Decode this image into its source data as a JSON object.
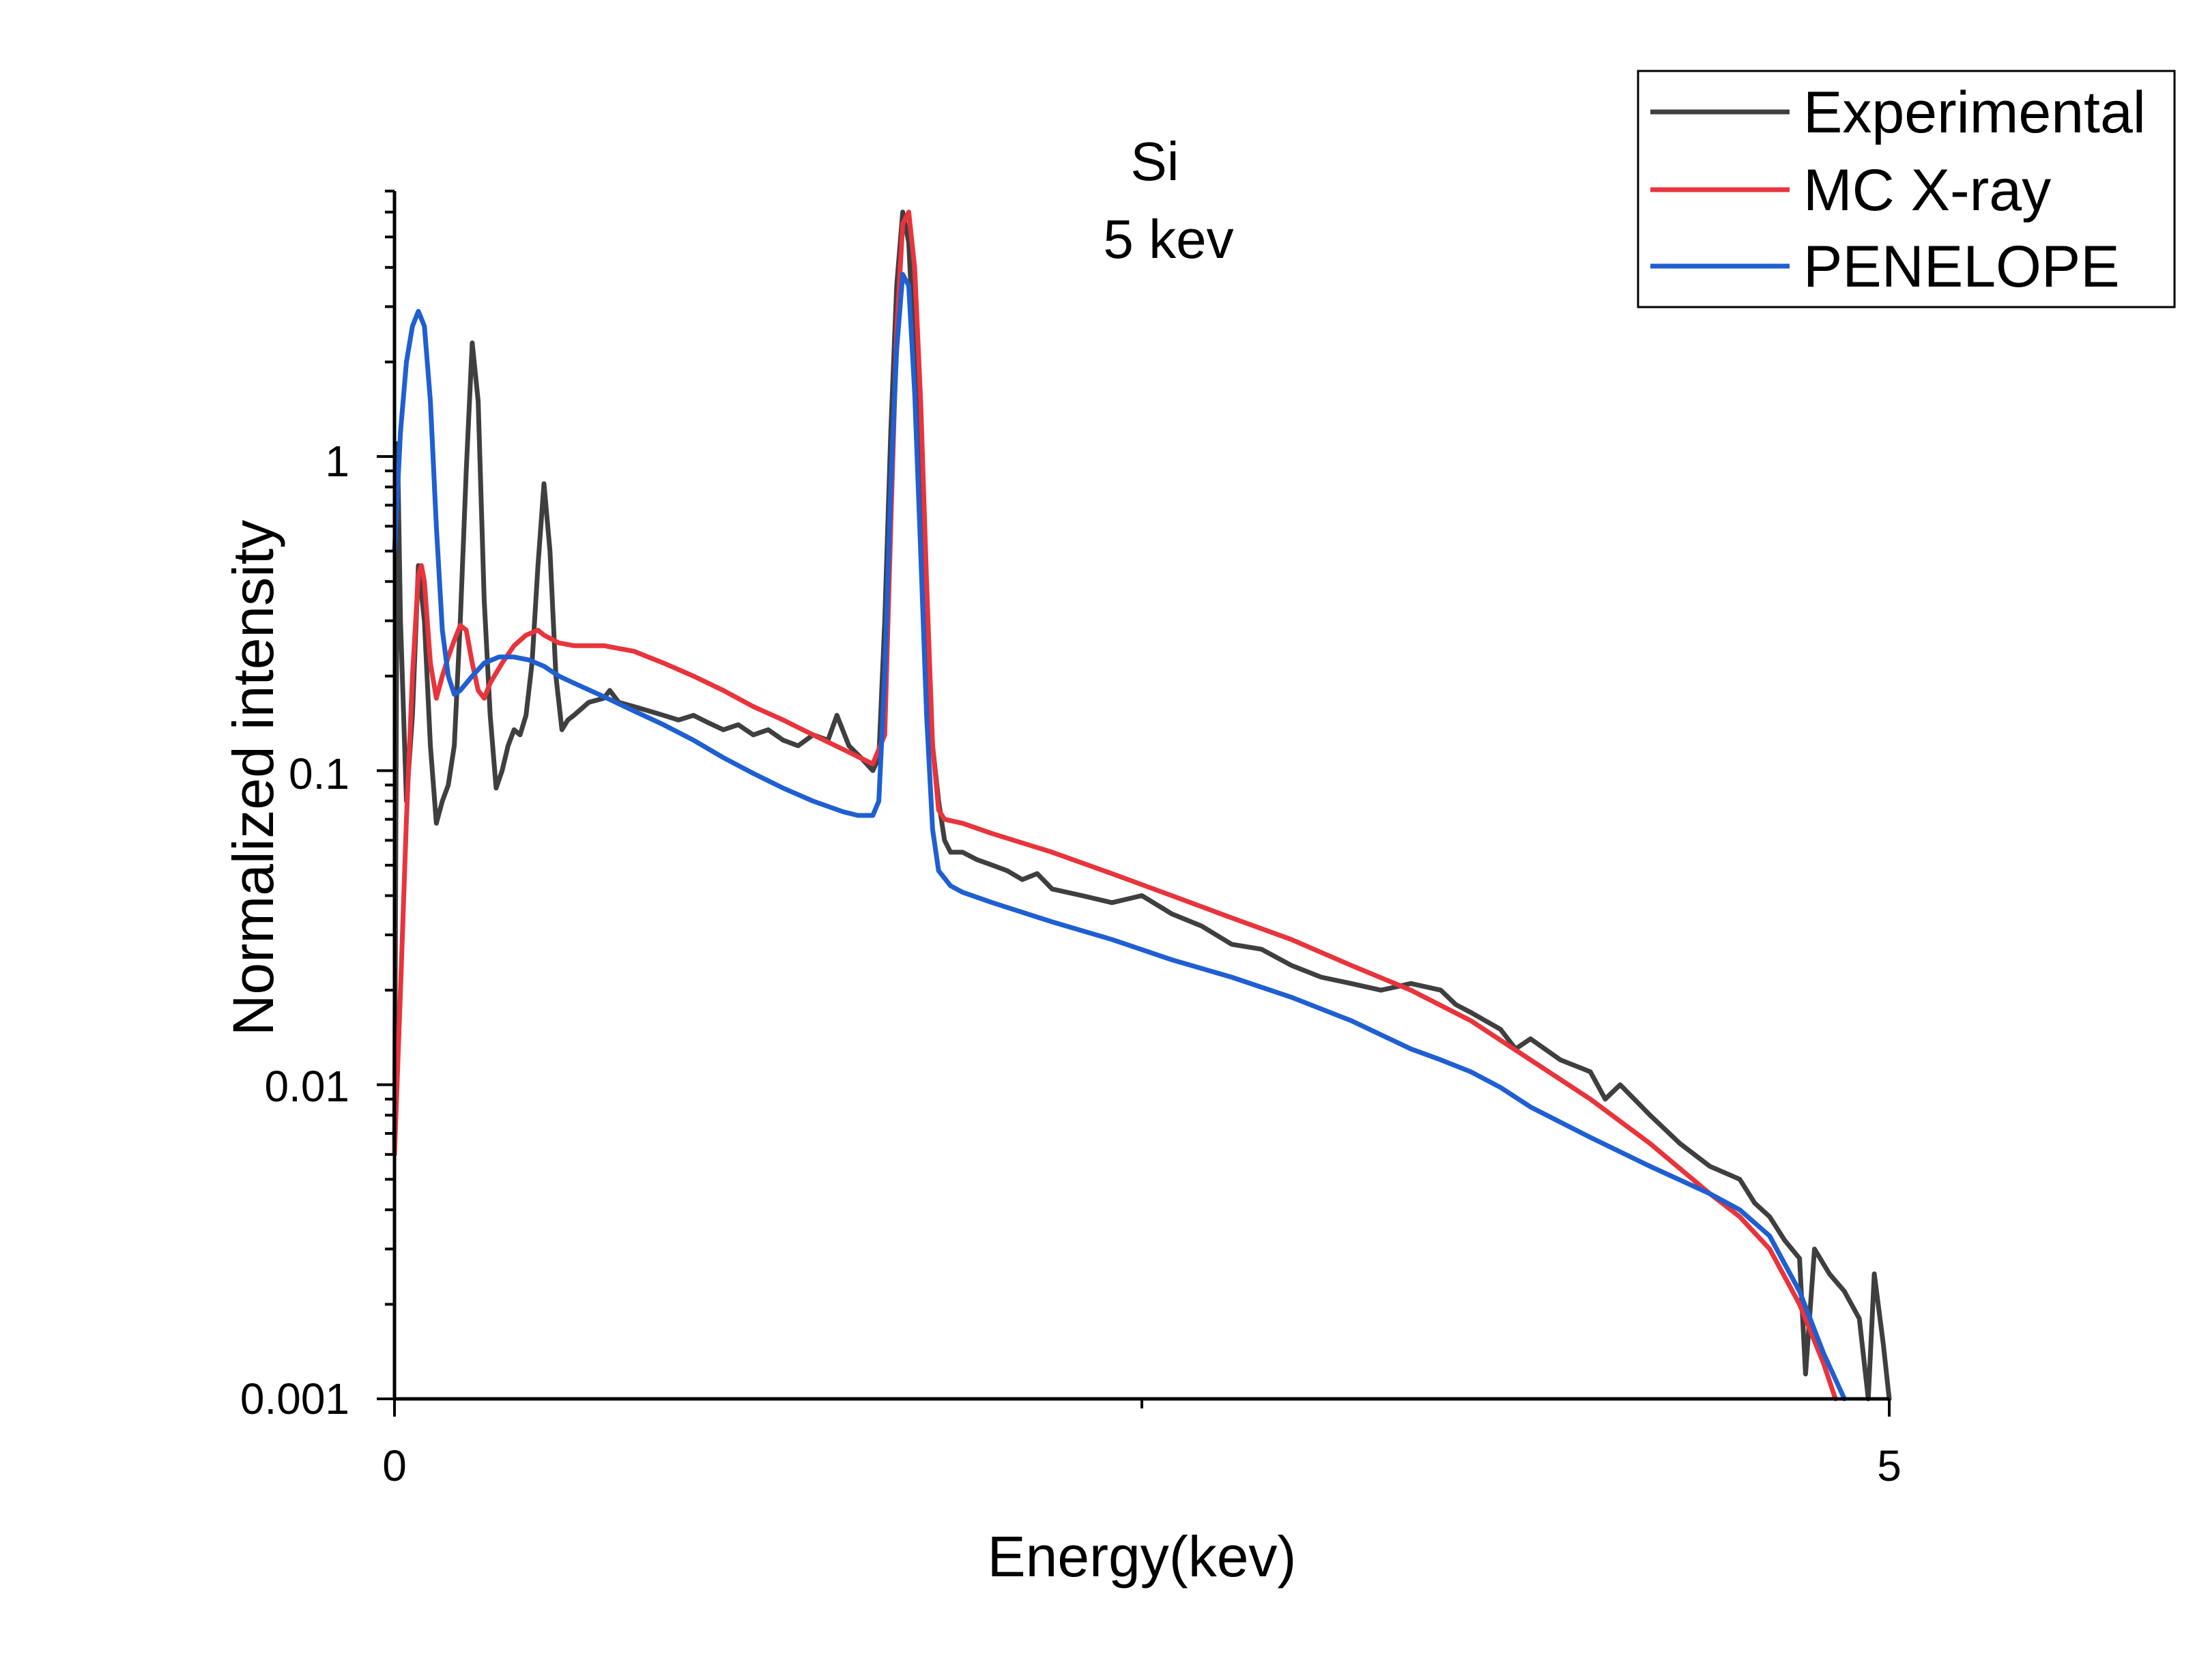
{
  "chart_data": {
    "type": "line",
    "title": "",
    "annotations": [
      "Si",
      "5 kev"
    ],
    "xlabel": "Energy(kev)",
    "ylabel": "Normalized intensity",
    "xscale": "linear",
    "yscale": "log",
    "xlim": [
      0,
      5
    ],
    "ylim": [
      0.001,
      7
    ],
    "x_ticks": [
      {
        "value": 0,
        "label": "0"
      },
      {
        "value": 5,
        "label": "5"
      }
    ],
    "x_minor_ticks": [
      2.5
    ],
    "y_ticks": [
      {
        "value": 0.001,
        "label": "0.001"
      },
      {
        "value": 0.01,
        "label": "0.01"
      },
      {
        "value": 0.1,
        "label": "0.1"
      },
      {
        "value": 1,
        "label": "1"
      }
    ],
    "grid": false,
    "legend_position": "top-right",
    "series": [
      {
        "name": "Experimental",
        "color": "#3f3f3f",
        "points": [
          [
            0.0,
            0.006
          ],
          [
            0.01,
            1.1
          ],
          [
            0.02,
            0.3
          ],
          [
            0.04,
            0.08
          ],
          [
            0.06,
            0.15
          ],
          [
            0.08,
            0.45
          ],
          [
            0.1,
            0.3
          ],
          [
            0.12,
            0.12
          ],
          [
            0.14,
            0.068
          ],
          [
            0.16,
            0.08
          ],
          [
            0.18,
            0.09
          ],
          [
            0.2,
            0.12
          ],
          [
            0.22,
            0.3
          ],
          [
            0.24,
            0.9
          ],
          [
            0.26,
            2.3
          ],
          [
            0.28,
            1.5
          ],
          [
            0.3,
            0.35
          ],
          [
            0.32,
            0.15
          ],
          [
            0.34,
            0.088
          ],
          [
            0.36,
            0.1
          ],
          [
            0.38,
            0.12
          ],
          [
            0.4,
            0.135
          ],
          [
            0.42,
            0.13
          ],
          [
            0.44,
            0.15
          ],
          [
            0.46,
            0.22
          ],
          [
            0.48,
            0.45
          ],
          [
            0.5,
            0.82
          ],
          [
            0.52,
            0.5
          ],
          [
            0.54,
            0.2
          ],
          [
            0.56,
            0.135
          ],
          [
            0.58,
            0.145
          ],
          [
            0.6,
            0.15
          ],
          [
            0.65,
            0.165
          ],
          [
            0.7,
            0.17
          ],
          [
            0.72,
            0.18
          ],
          [
            0.75,
            0.165
          ],
          [
            0.8,
            0.16
          ],
          [
            0.85,
            0.155
          ],
          [
            0.9,
            0.15
          ],
          [
            0.95,
            0.145
          ],
          [
            1.0,
            0.15
          ],
          [
            1.05,
            0.142
          ],
          [
            1.1,
            0.135
          ],
          [
            1.15,
            0.14
          ],
          [
            1.2,
            0.13
          ],
          [
            1.25,
            0.135
          ],
          [
            1.3,
            0.125
          ],
          [
            1.35,
            0.12
          ],
          [
            1.4,
            0.13
          ],
          [
            1.45,
            0.125
          ],
          [
            1.48,
            0.15
          ],
          [
            1.52,
            0.12
          ],
          [
            1.56,
            0.11
          ],
          [
            1.6,
            0.1
          ],
          [
            1.62,
            0.11
          ],
          [
            1.64,
            0.3
          ],
          [
            1.66,
            1.2
          ],
          [
            1.68,
            3.5
          ],
          [
            1.7,
            6.0
          ],
          [
            1.72,
            4.8
          ],
          [
            1.74,
            2.0
          ],
          [
            1.76,
            0.6
          ],
          [
            1.78,
            0.22
          ],
          [
            1.8,
            0.12
          ],
          [
            1.82,
            0.08
          ],
          [
            1.84,
            0.06
          ],
          [
            1.86,
            0.055
          ],
          [
            1.9,
            0.055
          ],
          [
            1.95,
            0.052
          ],
          [
            2.0,
            0.05
          ],
          [
            2.05,
            0.048
          ],
          [
            2.1,
            0.045
          ],
          [
            2.15,
            0.047
          ],
          [
            2.2,
            0.042
          ],
          [
            2.3,
            0.04
          ],
          [
            2.4,
            0.038
          ],
          [
            2.5,
            0.04
          ],
          [
            2.6,
            0.035
          ],
          [
            2.7,
            0.032
          ],
          [
            2.8,
            0.028
          ],
          [
            2.9,
            0.027
          ],
          [
            3.0,
            0.024
          ],
          [
            3.1,
            0.022
          ],
          [
            3.2,
            0.021
          ],
          [
            3.3,
            0.02
          ],
          [
            3.4,
            0.021
          ],
          [
            3.5,
            0.02
          ],
          [
            3.55,
            0.018
          ],
          [
            3.6,
            0.017
          ],
          [
            3.7,
            0.015
          ],
          [
            3.75,
            0.013
          ],
          [
            3.8,
            0.014
          ],
          [
            3.9,
            0.012
          ],
          [
            4.0,
            0.011
          ],
          [
            4.05,
            0.009
          ],
          [
            4.1,
            0.01
          ],
          [
            4.2,
            0.008
          ],
          [
            4.3,
            0.0065
          ],
          [
            4.4,
            0.0055
          ],
          [
            4.5,
            0.005
          ],
          [
            4.55,
            0.0042
          ],
          [
            4.6,
            0.0038
          ],
          [
            4.65,
            0.0032
          ],
          [
            4.7,
            0.0028
          ],
          [
            4.72,
            0.0012
          ],
          [
            4.75,
            0.003
          ],
          [
            4.8,
            0.0025
          ],
          [
            4.85,
            0.0022
          ],
          [
            4.9,
            0.0018
          ],
          [
            4.93,
            0.001
          ],
          [
            4.95,
            0.0025
          ],
          [
            4.98,
            0.0015
          ],
          [
            5.0,
            0.001
          ]
        ]
      },
      {
        "name": "MC X-ray",
        "color": "#e8343c",
        "points": [
          [
            0.0,
            0.006
          ],
          [
            0.02,
            0.02
          ],
          [
            0.04,
            0.07
          ],
          [
            0.06,
            0.2
          ],
          [
            0.08,
            0.42
          ],
          [
            0.09,
            0.45
          ],
          [
            0.1,
            0.4
          ],
          [
            0.12,
            0.22
          ],
          [
            0.14,
            0.17
          ],
          [
            0.16,
            0.2
          ],
          [
            0.18,
            0.23
          ],
          [
            0.2,
            0.26
          ],
          [
            0.22,
            0.29
          ],
          [
            0.24,
            0.28
          ],
          [
            0.26,
            0.22
          ],
          [
            0.28,
            0.18
          ],
          [
            0.3,
            0.17
          ],
          [
            0.32,
            0.19
          ],
          [
            0.36,
            0.22
          ],
          [
            0.4,
            0.25
          ],
          [
            0.44,
            0.27
          ],
          [
            0.48,
            0.28
          ],
          [
            0.5,
            0.27
          ],
          [
            0.55,
            0.255
          ],
          [
            0.6,
            0.25
          ],
          [
            0.7,
            0.25
          ],
          [
            0.8,
            0.24
          ],
          [
            0.9,
            0.22
          ],
          [
            1.0,
            0.2
          ],
          [
            1.1,
            0.18
          ],
          [
            1.2,
            0.16
          ],
          [
            1.3,
            0.145
          ],
          [
            1.4,
            0.13
          ],
          [
            1.5,
            0.117
          ],
          [
            1.6,
            0.105
          ],
          [
            1.64,
            0.13
          ],
          [
            1.66,
            0.6
          ],
          [
            1.68,
            2.5
          ],
          [
            1.7,
            5.5
          ],
          [
            1.72,
            6.0
          ],
          [
            1.74,
            4.0
          ],
          [
            1.76,
            1.5
          ],
          [
            1.78,
            0.4
          ],
          [
            1.8,
            0.12
          ],
          [
            1.82,
            0.075
          ],
          [
            1.84,
            0.07
          ],
          [
            1.9,
            0.068
          ],
          [
            2.0,
            0.063
          ],
          [
            2.2,
            0.055
          ],
          [
            2.4,
            0.047
          ],
          [
            2.6,
            0.04
          ],
          [
            2.8,
            0.034
          ],
          [
            3.0,
            0.029
          ],
          [
            3.2,
            0.024
          ],
          [
            3.4,
            0.02
          ],
          [
            3.6,
            0.016
          ],
          [
            3.8,
            0.012
          ],
          [
            4.0,
            0.009
          ],
          [
            4.2,
            0.0065
          ],
          [
            4.4,
            0.0045
          ],
          [
            4.5,
            0.0038
          ],
          [
            4.6,
            0.003
          ],
          [
            4.7,
            0.002
          ],
          [
            4.78,
            0.0013
          ],
          [
            4.82,
            0.001
          ]
        ]
      },
      {
        "name": "PENELOPE",
        "color": "#1f5fd1",
        "points": [
          [
            0.0,
            0.5
          ],
          [
            0.02,
            1.2
          ],
          [
            0.04,
            2.0
          ],
          [
            0.06,
            2.6
          ],
          [
            0.08,
            2.9
          ],
          [
            0.1,
            2.6
          ],
          [
            0.12,
            1.5
          ],
          [
            0.14,
            0.6
          ],
          [
            0.16,
            0.28
          ],
          [
            0.18,
            0.2
          ],
          [
            0.2,
            0.175
          ],
          [
            0.22,
            0.18
          ],
          [
            0.26,
            0.2
          ],
          [
            0.3,
            0.22
          ],
          [
            0.35,
            0.23
          ],
          [
            0.4,
            0.23
          ],
          [
            0.45,
            0.225
          ],
          [
            0.5,
            0.215
          ],
          [
            0.55,
            0.2
          ],
          [
            0.6,
            0.19
          ],
          [
            0.7,
            0.172
          ],
          [
            0.8,
            0.155
          ],
          [
            0.9,
            0.14
          ],
          [
            1.0,
            0.125
          ],
          [
            1.1,
            0.11
          ],
          [
            1.2,
            0.098
          ],
          [
            1.3,
            0.088
          ],
          [
            1.4,
            0.08
          ],
          [
            1.5,
            0.074
          ],
          [
            1.55,
            0.072
          ],
          [
            1.6,
            0.072
          ],
          [
            1.62,
            0.08
          ],
          [
            1.64,
            0.2
          ],
          [
            1.66,
            0.8
          ],
          [
            1.68,
            2.2
          ],
          [
            1.7,
            3.8
          ],
          [
            1.72,
            3.5
          ],
          [
            1.74,
            1.6
          ],
          [
            1.76,
            0.5
          ],
          [
            1.78,
            0.15
          ],
          [
            1.8,
            0.065
          ],
          [
            1.82,
            0.048
          ],
          [
            1.86,
            0.043
          ],
          [
            1.9,
            0.041
          ],
          [
            2.0,
            0.038
          ],
          [
            2.2,
            0.033
          ],
          [
            2.4,
            0.029
          ],
          [
            2.6,
            0.025
          ],
          [
            2.8,
            0.022
          ],
          [
            3.0,
            0.019
          ],
          [
            3.2,
            0.016
          ],
          [
            3.4,
            0.013
          ],
          [
            3.5,
            0.012
          ],
          [
            3.6,
            0.011
          ],
          [
            3.7,
            0.0098
          ],
          [
            3.8,
            0.0085
          ],
          [
            4.0,
            0.0068
          ],
          [
            4.2,
            0.0055
          ],
          [
            4.4,
            0.0045
          ],
          [
            4.5,
            0.004
          ],
          [
            4.6,
            0.0033
          ],
          [
            4.7,
            0.0022
          ],
          [
            4.78,
            0.0014
          ],
          [
            4.85,
            0.001
          ]
        ]
      }
    ]
  }
}
